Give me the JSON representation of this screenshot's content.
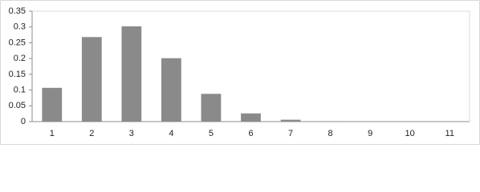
{
  "chart_data": {
    "type": "bar",
    "categories": [
      "1",
      "2",
      "3",
      "4",
      "5",
      "6",
      "7",
      "8",
      "9",
      "10",
      "11"
    ],
    "values": [
      0.107,
      0.268,
      0.302,
      0.201,
      0.088,
      0.026,
      0.006,
      0.001,
      0,
      0,
      0
    ],
    "color": "#8a8a8a",
    "ylim": [
      0,
      0.35
    ],
    "yticks": [
      0,
      0.05,
      0.1,
      0.15,
      0.2,
      0.25,
      0.3,
      0.35
    ],
    "grid": false
  }
}
